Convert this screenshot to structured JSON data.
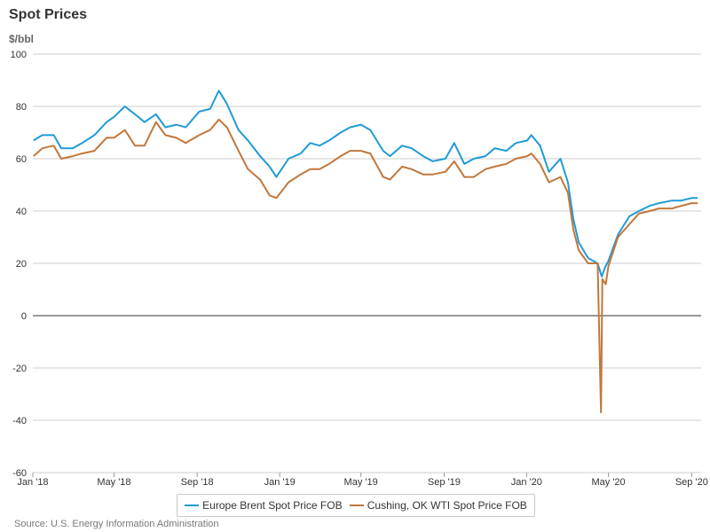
{
  "title": "Spot Prices",
  "unit": "$/bbl",
  "source": "Source: U.S. Energy Information Administration",
  "chart_data": {
    "type": "line",
    "title": "Spot Prices",
    "ylabel": "$/bbl",
    "ylim": [
      -60,
      100
    ],
    "yticks": [
      100,
      80,
      60,
      40,
      20,
      0,
      -20,
      -40,
      -60
    ],
    "xticks": [
      "Jan '18",
      "May '18",
      "Sep '18",
      "Jan '19",
      "May '19",
      "Sep '19",
      "Jan '20",
      "May '20",
      "Sep '20"
    ],
    "grid": true,
    "legend": "bottom",
    "series": [
      {
        "name": "Europe Brent Spot Price FOB",
        "color": "#1f9bd7",
        "x": [
          "2018-01-02",
          "2018-01-15",
          "2018-02-01",
          "2018-02-12",
          "2018-03-01",
          "2018-03-15",
          "2018-04-02",
          "2018-04-20",
          "2018-05-01",
          "2018-05-17",
          "2018-06-01",
          "2018-06-15",
          "2018-07-02",
          "2018-07-16",
          "2018-08-01",
          "2018-08-15",
          "2018-09-04",
          "2018-09-20",
          "2018-10-03",
          "2018-10-15",
          "2018-11-01",
          "2018-11-15",
          "2018-12-03",
          "2018-12-17",
          "2018-12-27",
          "2019-01-14",
          "2019-02-01",
          "2019-02-15",
          "2019-03-01",
          "2019-03-15",
          "2019-04-01",
          "2019-04-15",
          "2019-05-01",
          "2019-05-15",
          "2019-06-03",
          "2019-06-13",
          "2019-07-01",
          "2019-07-15",
          "2019-08-01",
          "2019-08-15",
          "2019-09-03",
          "2019-09-16",
          "2019-10-01",
          "2019-10-15",
          "2019-11-01",
          "2019-11-15",
          "2019-12-02",
          "2019-12-16",
          "2020-01-02",
          "2020-01-08",
          "2020-01-21",
          "2020-02-03",
          "2020-02-20",
          "2020-03-02",
          "2020-03-10",
          "2020-03-18",
          "2020-04-01",
          "2020-04-15",
          "2020-04-21",
          "2020-04-27",
          "2020-05-01",
          "2020-05-15",
          "2020-06-01",
          "2020-06-15",
          "2020-07-01",
          "2020-07-15",
          "2020-08-03",
          "2020-08-17",
          "2020-09-01",
          "2020-09-10"
        ],
        "y": [
          67,
          69,
          69,
          64,
          64,
          66,
          69,
          74,
          76,
          80,
          77,
          74,
          77,
          72,
          73,
          72,
          78,
          79,
          86,
          81,
          71,
          67,
          61,
          57,
          53,
          60,
          62,
          66,
          65,
          67,
          70,
          72,
          73,
          71,
          63,
          61,
          65,
          64,
          61,
          59,
          60,
          66,
          58,
          60,
          61,
          64,
          63,
          66,
          67,
          69,
          65,
          55,
          60,
          51,
          37,
          28,
          22,
          20,
          15,
          19,
          21,
          31,
          38,
          40,
          42,
          43,
          44,
          44,
          45,
          45
        ]
      },
      {
        "name": "Cushing, OK WTI Spot Price FOB",
        "color": "#c2773b",
        "x": [
          "2018-01-02",
          "2018-01-15",
          "2018-02-01",
          "2018-02-12",
          "2018-03-01",
          "2018-03-15",
          "2018-04-02",
          "2018-04-20",
          "2018-05-01",
          "2018-05-17",
          "2018-06-01",
          "2018-06-15",
          "2018-07-02",
          "2018-07-16",
          "2018-08-01",
          "2018-08-15",
          "2018-09-04",
          "2018-09-20",
          "2018-10-03",
          "2018-10-15",
          "2018-11-01",
          "2018-11-15",
          "2018-12-03",
          "2018-12-17",
          "2018-12-27",
          "2019-01-14",
          "2019-02-01",
          "2019-02-15",
          "2019-03-01",
          "2019-03-15",
          "2019-04-01",
          "2019-04-15",
          "2019-05-01",
          "2019-05-15",
          "2019-06-03",
          "2019-06-13",
          "2019-07-01",
          "2019-07-15",
          "2019-08-01",
          "2019-08-15",
          "2019-09-03",
          "2019-09-16",
          "2019-10-01",
          "2019-10-15",
          "2019-11-01",
          "2019-11-15",
          "2019-12-02",
          "2019-12-16",
          "2020-01-02",
          "2020-01-08",
          "2020-01-21",
          "2020-02-03",
          "2020-02-20",
          "2020-03-02",
          "2020-03-10",
          "2020-03-18",
          "2020-04-01",
          "2020-04-15",
          "2020-04-20",
          "2020-04-22",
          "2020-04-27",
          "2020-05-01",
          "2020-05-15",
          "2020-06-01",
          "2020-06-15",
          "2020-07-01",
          "2020-07-15",
          "2020-08-03",
          "2020-08-17",
          "2020-09-01",
          "2020-09-10"
        ],
        "y": [
          61,
          64,
          65,
          60,
          61,
          62,
          63,
          68,
          68,
          71,
          65,
          65,
          74,
          69,
          68,
          66,
          69,
          71,
          75,
          72,
          63,
          56,
          52,
          46,
          45,
          51,
          54,
          56,
          56,
          58,
          61,
          63,
          63,
          62,
          53,
          52,
          57,
          56,
          54,
          54,
          55,
          59,
          53,
          53,
          56,
          57,
          58,
          60,
          61,
          62,
          58,
          51,
          53,
          47,
          33,
          25,
          20,
          20,
          -37,
          14,
          12,
          19,
          30,
          35,
          39,
          40,
          41,
          41,
          42,
          43,
          43
        ]
      }
    ]
  }
}
